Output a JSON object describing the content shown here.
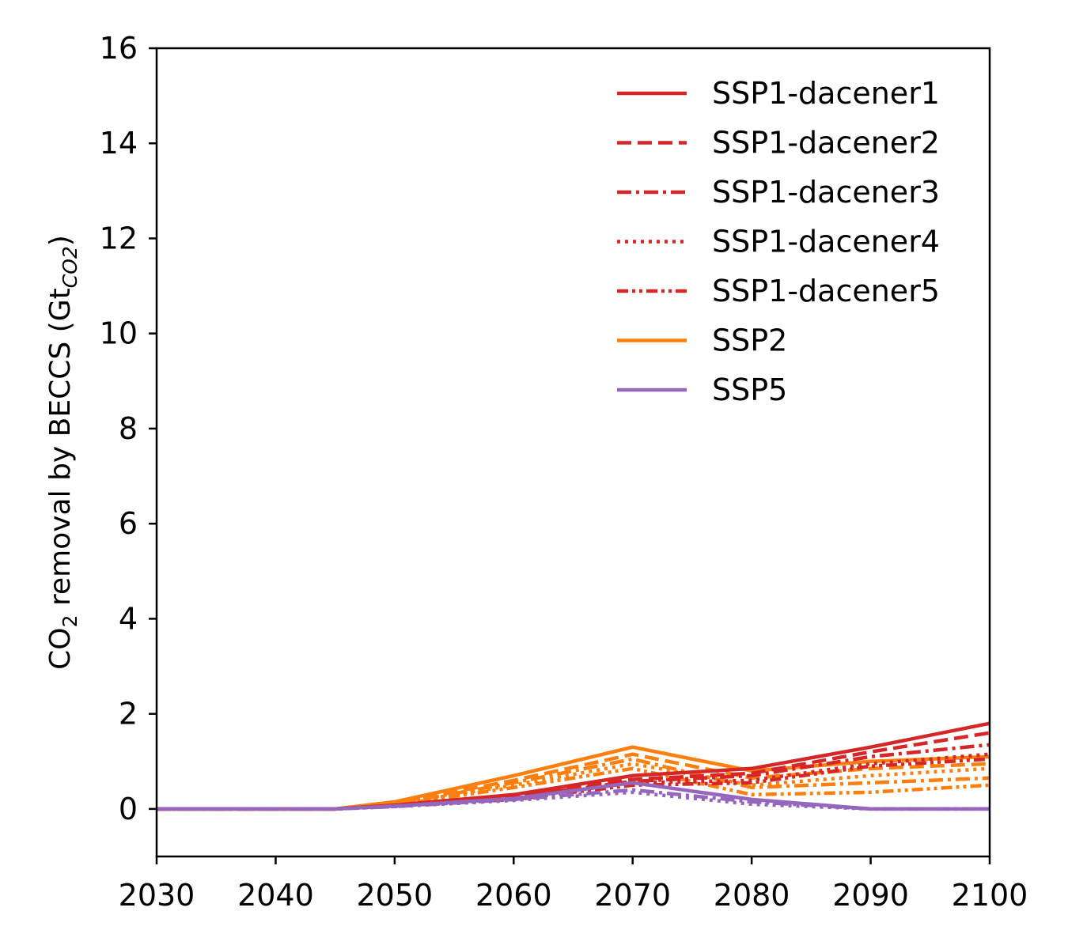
{
  "chart_data": {
    "type": "line",
    "title": "",
    "xlabel": "",
    "ylabel_main": "CO",
    "ylabel_sub": "2",
    "ylabel_rest": " removal by BECCS (Gt",
    "ylabel_unit_sub": "CO2",
    "ylabel_close": ")",
    "xlim": [
      2030,
      2100
    ],
    "ylim": [
      -1,
      16
    ],
    "xticks": [
      2030,
      2040,
      2050,
      2060,
      2070,
      2080,
      2090,
      2100
    ],
    "yticks": [
      0,
      2,
      4,
      6,
      8,
      10,
      12,
      14,
      16
    ],
    "grid": false,
    "legend_position": "top-right",
    "x": [
      2030,
      2040,
      2045,
      2050,
      2060,
      2070,
      2080,
      2090,
      2100
    ],
    "legend": [
      {
        "name": "SSP1-dacener1",
        "color": "#d62728",
        "dash": "solid"
      },
      {
        "name": "SSP1-dacener2",
        "color": "#d62728",
        "dash": "dashed"
      },
      {
        "name": "SSP1-dacener3",
        "color": "#d62728",
        "dash": "dashdot"
      },
      {
        "name": "SSP1-dacener4",
        "color": "#d62728",
        "dash": "dotted"
      },
      {
        "name": "SSP1-dacener5",
        "color": "#d62728",
        "dash": "dashdotdot"
      },
      {
        "name": "SSP2",
        "color": "#ff7f0e",
        "dash": "solid"
      },
      {
        "name": "SSP5",
        "color": "#9467bd",
        "dash": "solid"
      }
    ],
    "series": [
      {
        "color": "#ff7f0e",
        "dash": "solid",
        "values": [
          0,
          0,
          0,
          0.15,
          0.7,
          1.3,
          0.8,
          1.0,
          1.1
        ]
      },
      {
        "color": "#ff7f0e",
        "dash": "dashed",
        "values": [
          0,
          0,
          0,
          0.12,
          0.6,
          1.15,
          0.65,
          0.85,
          0.95
        ]
      },
      {
        "color": "#ff7f0e",
        "dash": "dashdot",
        "values": [
          0,
          0,
          0,
          0.1,
          0.55,
          1.05,
          0.45,
          0.55,
          0.65
        ]
      },
      {
        "color": "#ff7f0e",
        "dash": "dotted",
        "values": [
          0,
          0,
          0,
          0.1,
          0.5,
          0.95,
          0.5,
          0.7,
          0.85
        ]
      },
      {
        "color": "#ff7f0e",
        "dash": "dashdotdot",
        "values": [
          0,
          0,
          0,
          0.08,
          0.45,
          0.85,
          0.3,
          0.35,
          0.5
        ]
      },
      {
        "color": "#d62728",
        "dash": "solid",
        "values": [
          0,
          0,
          0,
          0.08,
          0.3,
          0.7,
          0.85,
          1.3,
          1.8
        ]
      },
      {
        "color": "#d62728",
        "dash": "dashed",
        "values": [
          0,
          0,
          0,
          0.07,
          0.28,
          0.62,
          0.75,
          1.2,
          1.6
        ]
      },
      {
        "color": "#d62728",
        "dash": "dashdot",
        "values": [
          0,
          0,
          0,
          0.07,
          0.25,
          0.58,
          0.7,
          1.1,
          1.35
        ]
      },
      {
        "color": "#d62728",
        "dash": "dotted",
        "values": [
          0,
          0,
          0,
          0.06,
          0.22,
          0.55,
          0.6,
          0.95,
          1.15
        ]
      },
      {
        "color": "#d62728",
        "dash": "dashdotdot",
        "values": [
          0,
          0,
          0,
          0.06,
          0.2,
          0.5,
          0.55,
          0.9,
          1.05
        ]
      },
      {
        "color": "#9467bd",
        "dash": "dotted",
        "values": [
          0,
          0,
          0,
          0.05,
          0.18,
          0.35,
          0.1,
          0,
          0
        ]
      },
      {
        "color": "#9467bd",
        "dash": "dashdot",
        "values": [
          0,
          0,
          0,
          0.05,
          0.2,
          0.4,
          0.15,
          0,
          0
        ]
      },
      {
        "color": "#9467bd",
        "dash": "solid",
        "values": [
          0,
          0,
          0,
          0.06,
          0.22,
          0.55,
          0.2,
          0,
          0
        ]
      }
    ]
  }
}
